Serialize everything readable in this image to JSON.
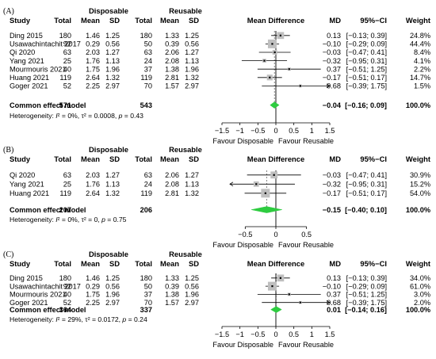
{
  "column_headers": {
    "study": "Study",
    "disposable": "Disposable",
    "reusable": "Reusable",
    "total": "Total",
    "mean": "Mean",
    "sd": "SD",
    "mean_difference": "Mean Difference",
    "md": "MD",
    "ci": "95%−CI",
    "weight": "Weight"
  },
  "axis_labels": {
    "favour_left": "Favour Disposable",
    "favour_right": "Favour Reusable"
  },
  "colors": {
    "diamond": "#2ecc40",
    "box": "#bfbfbf",
    "line": "#000000",
    "ref_line": "#000000"
  },
  "chart_data": [
    {
      "type": "forest",
      "panel_label": "(A)",
      "xlim": [
        -1.5,
        1.5
      ],
      "ticks": [
        "−1.5",
        "−1",
        "−0.5",
        "0",
        "0.5",
        "1",
        "1.5"
      ],
      "tick_values": [
        -1.5,
        -1,
        -0.5,
        0,
        0.5,
        1,
        1.5
      ],
      "studies": [
        {
          "study": "Ding 2015",
          "d_total": "180",
          "d_mean": "1.46",
          "d_sd": "1.25",
          "r_total": "180",
          "r_mean": "1.33",
          "r_sd": "1.25",
          "md": "0.13",
          "ci": "[−0.13; 0.39]",
          "weight": "24.8%",
          "md_value": 0.13,
          "lo": -0.13,
          "hi": 0.39,
          "weight_value": 24.8
        },
        {
          "study": "Usawachintachit 2017",
          "d_total": "92",
          "d_mean": "0.29",
          "d_sd": "0.56",
          "r_total": "50",
          "r_mean": "0.39",
          "r_sd": "0.56",
          "md": "−0.10",
          "ci": "[−0.29; 0.09]",
          "weight": "44.4%",
          "md_value": -0.1,
          "lo": -0.29,
          "hi": 0.09,
          "weight_value": 44.4
        },
        {
          "study": "Qi 2020",
          "d_total": "63",
          "d_mean": "2.03",
          "d_sd": "1.27",
          "r_total": "63",
          "r_mean": "2.06",
          "r_sd": "1.27",
          "md": "−0.03",
          "ci": "[−0.47; 0.41]",
          "weight": "8.4%",
          "md_value": -0.03,
          "lo": -0.47,
          "hi": 0.41,
          "weight_value": 8.4
        },
        {
          "study": "Yang 2021",
          "d_total": "25",
          "d_mean": "1.76",
          "d_sd": "1.13",
          "r_total": "24",
          "r_mean": "2.08",
          "r_sd": "1.13",
          "md": "−0.32",
          "ci": "[−0.95; 0.31]",
          "weight": "4.1%",
          "md_value": -0.32,
          "lo": -0.95,
          "hi": 0.31,
          "weight_value": 4.1
        },
        {
          "study": "Mourmouris 2021",
          "d_total": "40",
          "d_mean": "1.75",
          "d_sd": "1.96",
          "r_total": "37",
          "r_mean": "1.38",
          "r_sd": "1.96",
          "md": "0.37",
          "ci": "[−0.51; 1.25]",
          "weight": "2.2%",
          "md_value": 0.37,
          "lo": -0.51,
          "hi": 1.25,
          "weight_value": 2.2
        },
        {
          "study": "Huang 2021",
          "d_total": "119",
          "d_mean": "2.64",
          "d_sd": "1.32",
          "r_total": "119",
          "r_mean": "2.81",
          "r_sd": "1.32",
          "md": "−0.17",
          "ci": "[−0.51; 0.17]",
          "weight": "14.7%",
          "md_value": -0.17,
          "lo": -0.51,
          "hi": 0.17,
          "weight_value": 14.7
        },
        {
          "study": "Goger 2021",
          "d_total": "52",
          "d_mean": "2.25",
          "d_sd": "2.97",
          "r_total": "70",
          "r_mean": "1.57",
          "r_sd": "2.97",
          "md": "0.68",
          "ci": "[−0.39; 1.75]",
          "weight": "1.5%",
          "md_value": 0.68,
          "lo": -0.39,
          "hi": 1.75,
          "weight_value": 1.5
        }
      ],
      "pooled": {
        "label": "Common effect model",
        "d_total": "571",
        "r_total": "543",
        "md": "−0.04",
        "ci": "[−0.16; 0.09]",
        "weight": "100.0%",
        "md_value": -0.04,
        "lo": -0.16,
        "hi": 0.09
      },
      "heterogeneity": {
        "prefix": "Heterogeneity: ",
        "i2_symbol": "I",
        "i2_rest": "² = 0%, ",
        "tau_rest": "τ² = 0.0008, ",
        "p_symbol": "p",
        "p_rest": " = 0.43"
      }
    },
    {
      "type": "forest",
      "panel_label": "(B)",
      "xlim": [
        -0.75,
        0.75
      ],
      "ticks": [
        "−0.5",
        "0",
        "0.5"
      ],
      "tick_values": [
        -0.5,
        0,
        0.5
      ],
      "studies": [
        {
          "study": "Qi 2020",
          "d_total": "63",
          "d_mean": "2.03",
          "d_sd": "1.27",
          "r_total": "63",
          "r_mean": "2.06",
          "r_sd": "1.27",
          "md": "−0.03",
          "ci": "[−0.47; 0.41]",
          "weight": "30.9%",
          "md_value": -0.03,
          "lo": -0.47,
          "hi": 0.41,
          "weight_value": 30.9
        },
        {
          "study": "Yang 2021",
          "d_total": "25",
          "d_mean": "1.76",
          "d_sd": "1.13",
          "r_total": "24",
          "r_mean": "2.08",
          "r_sd": "1.13",
          "md": "−0.32",
          "ci": "[−0.95; 0.31]",
          "weight": "15.2%",
          "md_value": -0.32,
          "lo": -0.95,
          "hi": 0.31,
          "weight_value": 15.2
        },
        {
          "study": "Huang 2021",
          "d_total": "119",
          "d_mean": "2.64",
          "d_sd": "1.32",
          "r_total": "119",
          "r_mean": "2.81",
          "r_sd": "1.32",
          "md": "−0.17",
          "ci": "[−0.51; 0.17]",
          "weight": "54.0%",
          "md_value": -0.17,
          "lo": -0.51,
          "hi": 0.17,
          "weight_value": 54.0
        }
      ],
      "pooled": {
        "label": "Common effect model",
        "d_total": "207",
        "r_total": "206",
        "md": "−0.15",
        "ci": "[−0.40; 0.10]",
        "weight": "100.0%",
        "md_value": -0.15,
        "lo": -0.4,
        "hi": 0.1
      },
      "heterogeneity": {
        "prefix": "Heterogeneity: ",
        "i2_symbol": "I",
        "i2_rest": "² = 0%, ",
        "tau_rest": "τ² = 0, ",
        "p_symbol": "p",
        "p_rest": " = 0.75"
      }
    },
    {
      "type": "forest",
      "panel_label": "(C)",
      "xlim": [
        -1.5,
        1.5
      ],
      "ticks": [
        "−1.5",
        "−1",
        "−0.5",
        "0",
        "0.5",
        "1",
        "1.5"
      ],
      "tick_values": [
        -1.5,
        -1,
        -0.5,
        0,
        0.5,
        1,
        1.5
      ],
      "studies": [
        {
          "study": "Ding 2015",
          "d_total": "180",
          "d_mean": "1.46",
          "d_sd": "1.25",
          "r_total": "180",
          "r_mean": "1.33",
          "r_sd": "1.25",
          "md": "0.13",
          "ci": "[−0.13; 0.39]",
          "weight": "34.0%",
          "md_value": 0.13,
          "lo": -0.13,
          "hi": 0.39,
          "weight_value": 34.0
        },
        {
          "study": "Usawachintachit 2017",
          "d_total": "92",
          "d_mean": "0.29",
          "d_sd": "0.56",
          "r_total": "50",
          "r_mean": "0.39",
          "r_sd": "0.56",
          "md": "−0.10",
          "ci": "[−0.29; 0.09]",
          "weight": "61.0%",
          "md_value": -0.1,
          "lo": -0.29,
          "hi": 0.09,
          "weight_value": 61.0
        },
        {
          "study": "Mourmouris 2021",
          "d_total": "40",
          "d_mean": "1.75",
          "d_sd": "1.96",
          "r_total": "37",
          "r_mean": "1.38",
          "r_sd": "1.96",
          "md": "0.37",
          "ci": "[−0.51; 1.25]",
          "weight": "3.0%",
          "md_value": 0.37,
          "lo": -0.51,
          "hi": 1.25,
          "weight_value": 3.0
        },
        {
          "study": "Goger 2021",
          "d_total": "52",
          "d_mean": "2.25",
          "d_sd": "2.97",
          "r_total": "70",
          "r_mean": "1.57",
          "r_sd": "2.97",
          "md": "0.68",
          "ci": "[−0.39; 1.75]",
          "weight": "2.0%",
          "md_value": 0.68,
          "lo": -0.39,
          "hi": 1.75,
          "weight_value": 2.0
        }
      ],
      "pooled": {
        "label": "Common effect model",
        "d_total": "364",
        "r_total": "337",
        "md": "0.01",
        "ci": "[−0.14; 0.16]",
        "weight": "100.0%",
        "md_value": 0.01,
        "lo": -0.14,
        "hi": 0.16
      },
      "heterogeneity": {
        "prefix": "Heterogeneity: ",
        "i2_symbol": "I",
        "i2_rest": "² = 29%, ",
        "tau_rest": "τ² = 0.0172, ",
        "p_symbol": "p",
        "p_rest": " = 0.24"
      }
    }
  ]
}
